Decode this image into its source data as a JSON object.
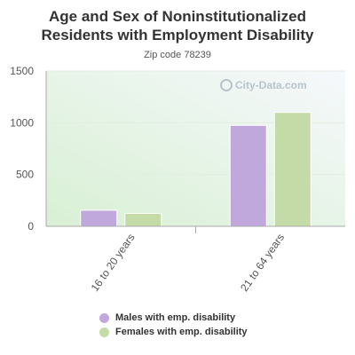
{
  "chart_data": {
    "type": "bar",
    "title_line1": "Age and Sex of Noninstitutionalized",
    "title_line2": "Residents with Employment Disability",
    "subtitle": "Zip code 78239",
    "watermark": "City-Data.com",
    "categories": [
      "16 to 20 years",
      "21 to 64 years"
    ],
    "series": [
      {
        "name": "Males with emp. disability",
        "values": [
          155,
          975
        ],
        "color": "#c0a8dc"
      },
      {
        "name": "Females with emp. disability",
        "values": [
          125,
          1100
        ],
        "color": "#c4dba8"
      }
    ],
    "y_ticks": [
      "0",
      "500",
      "1000",
      "1500"
    ],
    "ylim": [
      0,
      1500
    ],
    "legend_position": "bottom"
  }
}
